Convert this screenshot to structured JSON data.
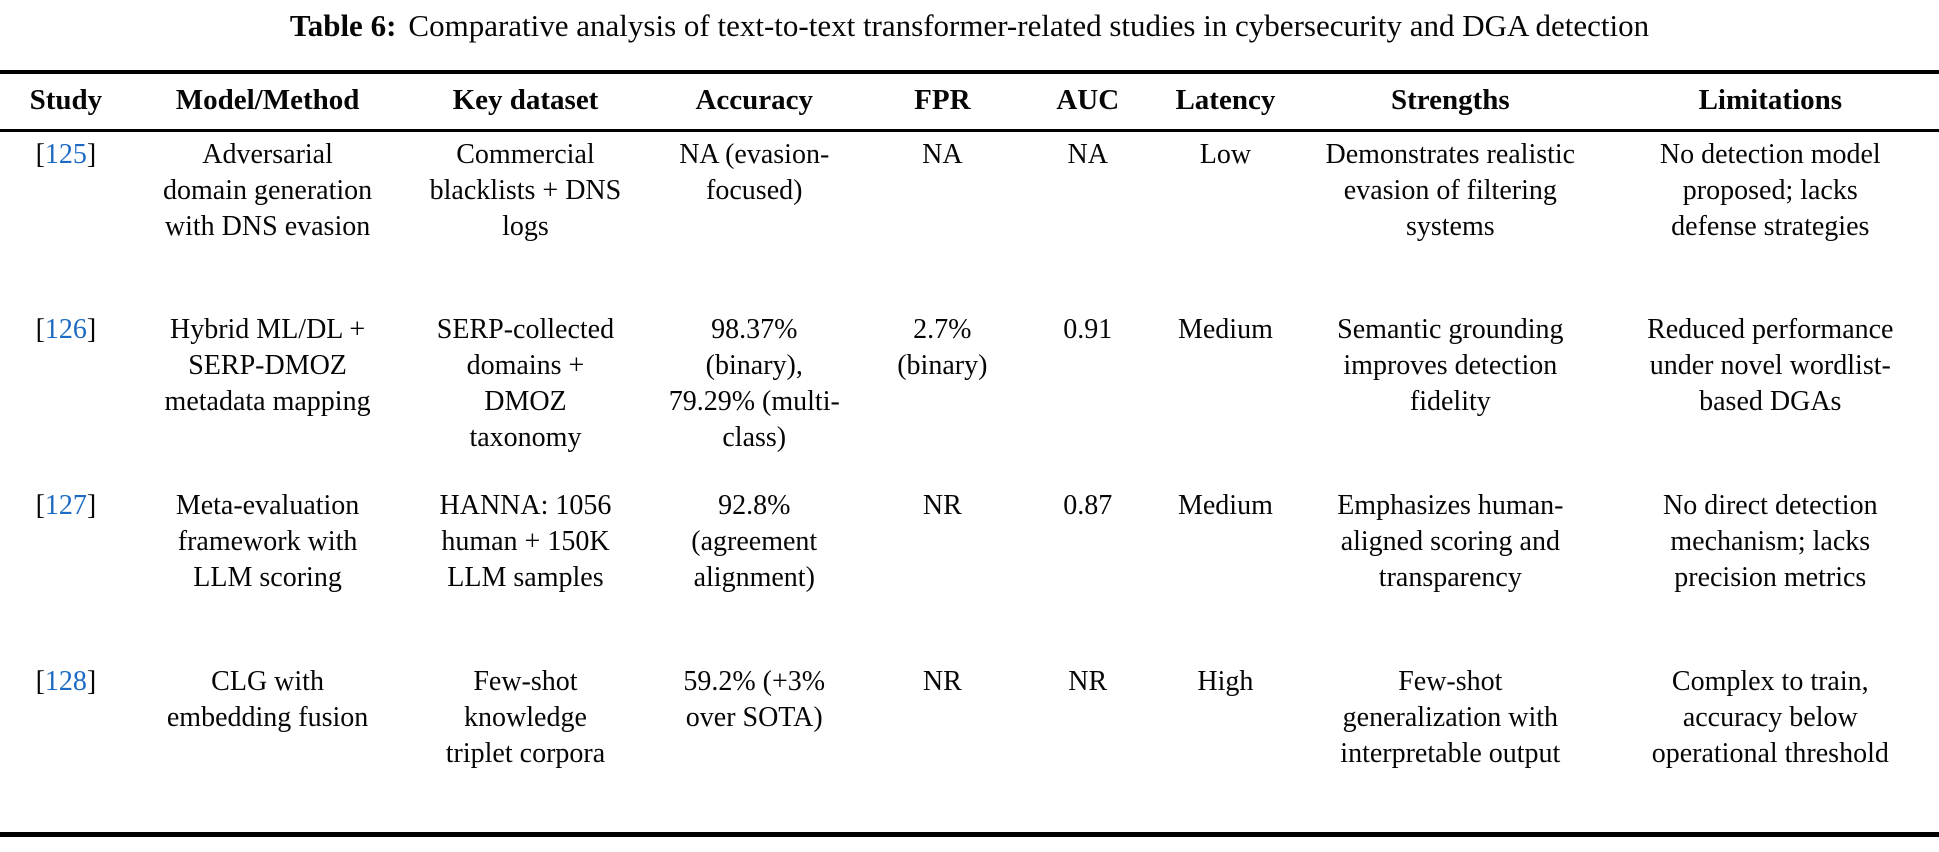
{
  "caption": {
    "label": "Table 6:",
    "text": "Comparative analysis of text-to-text transformer-related studies in cybersecurity and DGA detection"
  },
  "colors": {
    "citation_blue": "#1d6ac4",
    "text": "#060606",
    "rule": "#000000"
  },
  "table": {
    "ref_brackets": {
      "open": "[",
      "close": "]"
    },
    "columns": [
      "Study",
      "Model/Method",
      "Key dataset",
      "Accuracy",
      "FPR",
      "AUC",
      "Latency",
      "Strengths",
      "Limitations"
    ],
    "rows": [
      {
        "ref": "125",
        "model_method": "Adversarial domain generation with DNS evasion",
        "key_dataset": "Commercial blacklists + DNS logs",
        "accuracy": "NA (evasion-focused)",
        "fpr": "NA",
        "auc": "NA",
        "latency": "Low",
        "strengths": "Demonstrates realistic evasion of filtering systems",
        "limitations": "No detection model proposed; lacks defense strategies"
      },
      {
        "ref": "126",
        "model_method": "Hybrid ML/DL + SERP-DMOZ metadata mapping",
        "key_dataset": "SERP-collected domains + DMOZ taxonomy",
        "accuracy": "98.37% (binary), 79.29% (multi-class)",
        "fpr": "2.7% (binary)",
        "auc": "0.91",
        "latency": "Medium",
        "strengths": "Semantic grounding improves detection fidelity",
        "limitations": "Reduced performance under novel wordlist-based DGAs"
      },
      {
        "ref": "127",
        "model_method": "Meta-evaluation framework with LLM scoring",
        "key_dataset": "HANNA: 1056 human + 150K LLM samples",
        "accuracy": "92.8% (agreement alignment)",
        "fpr": "NR",
        "auc": "0.87",
        "latency": "Medium",
        "strengths": "Emphasizes human-aligned scoring and transparency",
        "limitations": "No direct detection mechanism; lacks precision metrics"
      },
      {
        "ref": "128",
        "model_method": "CLG with embedding fusion",
        "key_dataset": "Few-shot knowledge triplet corpora",
        "accuracy": "59.2% (+3% over SOTA)",
        "fpr": "NR",
        "auc": "NR",
        "latency": "High",
        "strengths": "Few-shot generalization with interpretable output",
        "limitations": "Complex to train, accuracy below operational threshold"
      }
    ]
  }
}
